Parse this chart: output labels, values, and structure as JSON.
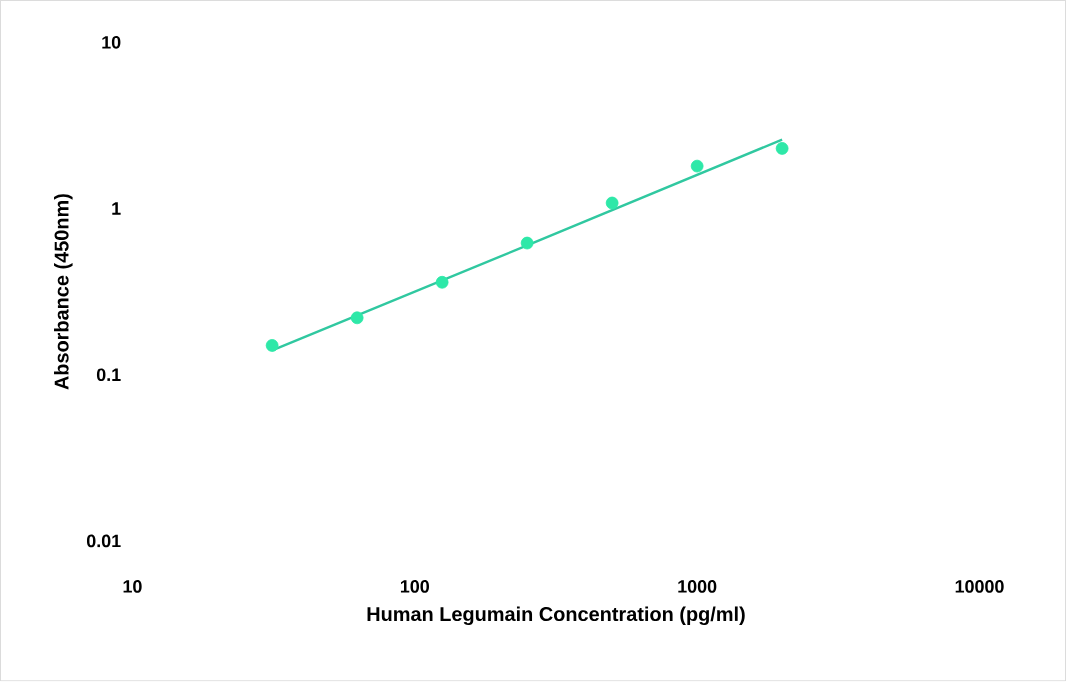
{
  "chart_data": {
    "type": "scatter",
    "xlabel": "Human Legumain Concentration (pg/ml)",
    "ylabel": "Absorbance (450nm)",
    "log": "xy",
    "xlim": [
      10,
      10000
    ],
    "ylim": [
      0.01,
      10
    ],
    "xticks": [
      10,
      100,
      1000,
      10000
    ],
    "yticks": [
      0.01,
      0.1,
      1,
      10
    ],
    "series": [
      {
        "color": "#2ee8a8",
        "marker": "circle",
        "x": [
          31.25,
          62.5,
          125,
          250,
          500,
          1000,
          2000
        ],
        "values": [
          0.15,
          0.22,
          0.36,
          0.62,
          1.08,
          1.8,
          2.3
        ]
      },
      {
        "type": "line",
        "color": "#30c8a0",
        "marker": "none",
        "line_style": "solid",
        "x": [
          31.25,
          250,
          2000
        ],
        "values": [
          0.14,
          0.6,
          2.6
        ]
      }
    ]
  }
}
